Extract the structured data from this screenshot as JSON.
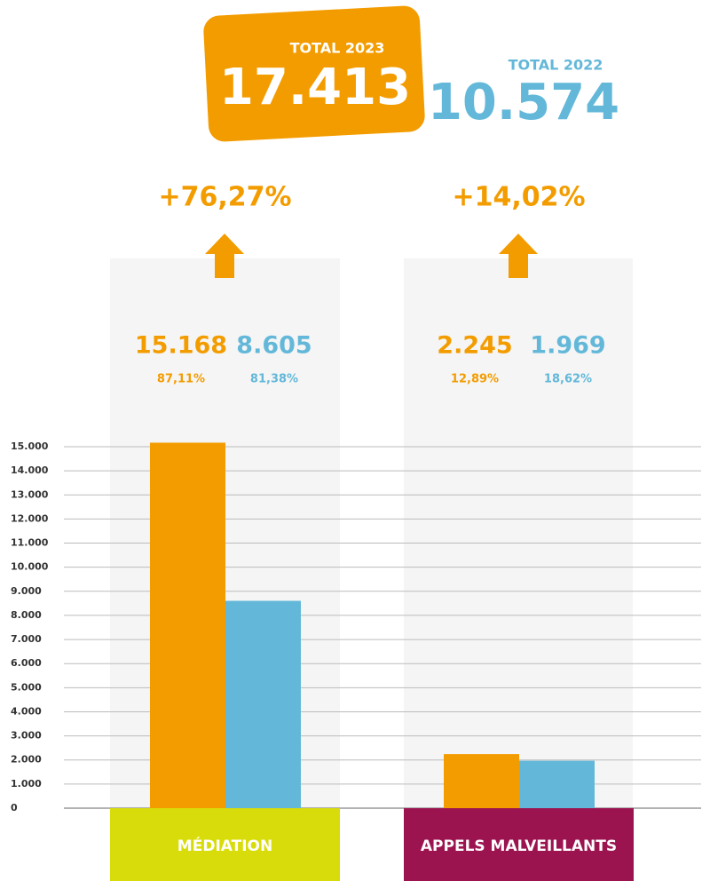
{
  "chart_data": {
    "type": "bar",
    "totals": [
      {
        "label": "TOTAL 2023",
        "value_label": "17.413",
        "color": "#f39c00"
      },
      {
        "label": "TOTAL 2022",
        "value_label": "10.574",
        "color": "#63b8d9"
      }
    ],
    "categories": [
      "MÉDIATION",
      "APPELS MALVEILLANTS"
    ],
    "category_colors": [
      "#d8dc0a",
      "#9b1450"
    ],
    "change_labels": [
      "+76,27%",
      "+14,02%"
    ],
    "series": [
      {
        "color": "#f39c00",
        "values": [
          15168,
          2245
        ],
        "value_labels": [
          "15.168",
          "2.245"
        ],
        "share_labels": [
          "87,11%",
          "12,89%"
        ]
      },
      {
        "color": "#63b8d9",
        "values": [
          8605,
          1969
        ],
        "value_labels": [
          "8.605",
          "1.969"
        ],
        "share_labels": [
          "81,38%",
          "18,62%"
        ]
      }
    ],
    "ylim": [
      0,
      15000
    ],
    "yticks": [
      0,
      {
        "value": 1000,
        "label": "1.000"
      },
      {
        "value": 2000,
        "label": "2.000"
      },
      {
        "value": 3000,
        "label": "3.000"
      },
      {
        "value": 4000,
        "label": "4.000"
      },
      {
        "value": 5000,
        "label": "5.000"
      },
      {
        "value": 6000,
        "label": "6.000"
      },
      {
        "value": 7000,
        "label": "7.000"
      },
      {
        "value": 8000,
        "label": "8.000"
      },
      {
        "value": 9000,
        "label": "9.000"
      },
      {
        "value": 10000,
        "label": "10.000"
      },
      {
        "value": 11000,
        "label": "11.000"
      },
      {
        "value": 12000,
        "label": "12.000"
      },
      {
        "value": 13000,
        "label": "13.000"
      },
      {
        "value": 14000,
        "label": "14.000"
      },
      {
        "value": 15000,
        "label": "15.000"
      }
    ],
    "grid": true
  }
}
